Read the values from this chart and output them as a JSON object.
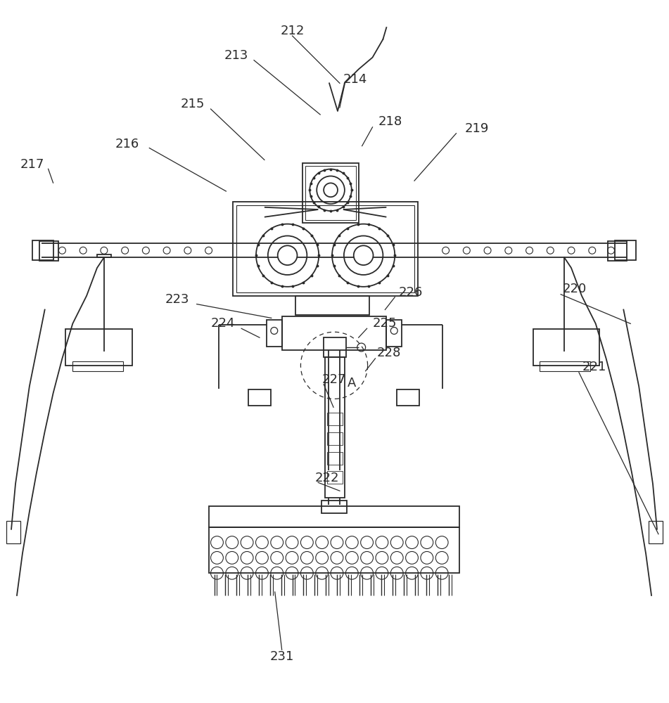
{
  "bg_color": "#ffffff",
  "lc": "#2a2a2a",
  "fig_w": 9.51,
  "fig_h": 10.0,
  "dpi": 100,
  "label_fs": 13
}
